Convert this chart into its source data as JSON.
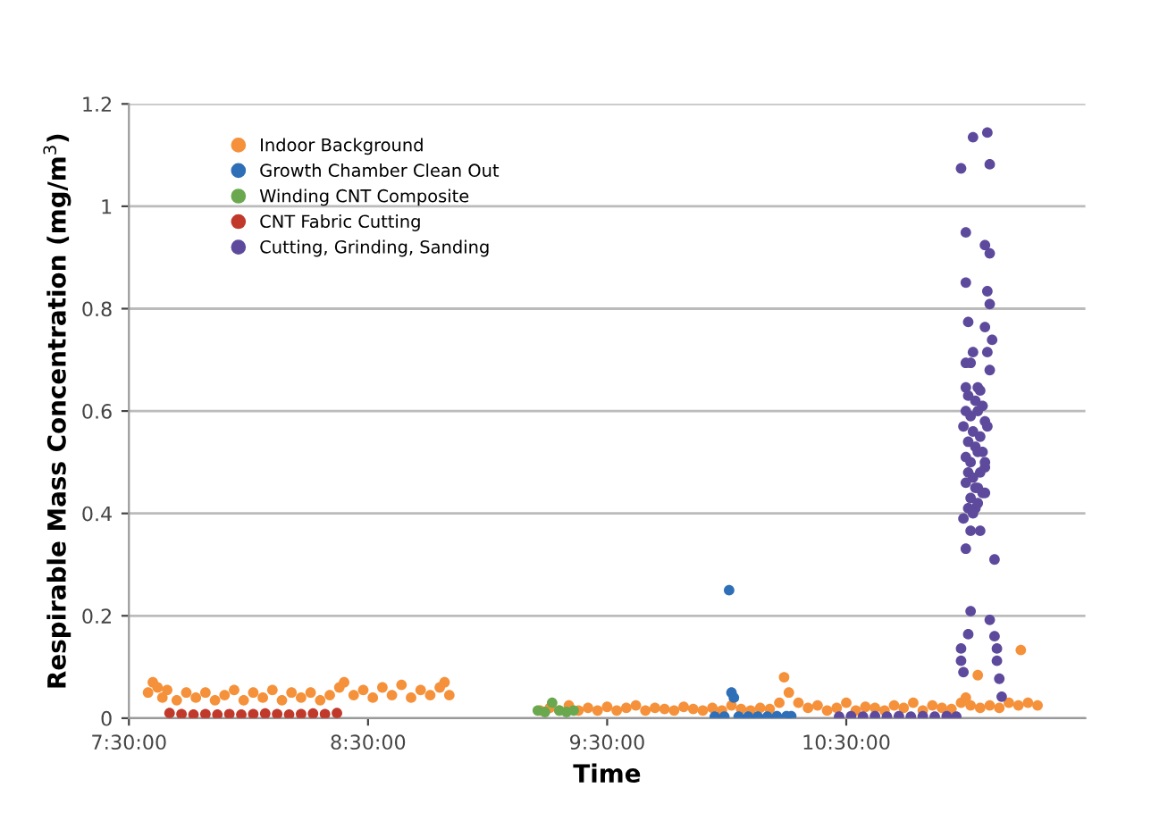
{
  "chart_data": {
    "type": "scatter",
    "xlabel": "Time",
    "ylabel": "Respirable Mass Concentration (mg/m$^{3}$)",
    "xlim": [
      7.5,
      11.5
    ],
    "xticks": [
      {
        "value": 7.5,
        "label": "7:30:00"
      },
      {
        "value": 8.5,
        "label": "8:30:00"
      },
      {
        "value": 9.5,
        "label": "9:30:00"
      },
      {
        "value": 10.5,
        "label": "10:30:00"
      }
    ],
    "ylim": [
      0,
      1.2
    ],
    "yticks": [
      0,
      0.2,
      0.4,
      0.6,
      0.8,
      1,
      1.2
    ],
    "grid": "y",
    "legend": "top left",
    "marker": "circle",
    "series": [
      {
        "name": "Indoor Background",
        "color": "#f5913a",
        "x": [
          7.58,
          7.6,
          7.62,
          7.64,
          7.66,
          7.7,
          7.74,
          7.78,
          7.82,
          7.86,
          7.9,
          7.94,
          7.98,
          8.02,
          8.06,
          8.1,
          8.14,
          8.18,
          8.22,
          8.26,
          8.3,
          8.34,
          8.38,
          8.4,
          8.44,
          8.48,
          8.52,
          8.56,
          8.6,
          8.64,
          8.68,
          8.72,
          8.76,
          8.8,
          8.82,
          8.84,
          9.22,
          9.26,
          9.3,
          9.34,
          9.38,
          9.42,
          9.46,
          9.5,
          9.54,
          9.58,
          9.62,
          9.66,
          9.7,
          9.74,
          9.78,
          9.82,
          9.86,
          9.9,
          9.94,
          9.98,
          10.02,
          10.06,
          10.1,
          10.14,
          10.18,
          10.22,
          10.24,
          10.26,
          10.3,
          10.34,
          10.38,
          10.42,
          10.46,
          10.5,
          10.54,
          10.58,
          10.62,
          10.66,
          10.7,
          10.74,
          10.78,
          10.82,
          10.86,
          10.9,
          10.94,
          10.98,
          11.0,
          11.02,
          11.05,
          11.06,
          11.1,
          11.14,
          11.18,
          11.22,
          11.23,
          11.26,
          11.3
        ],
        "values": [
          0.05,
          0.07,
          0.06,
          0.04,
          0.055,
          0.035,
          0.05,
          0.04,
          0.05,
          0.035,
          0.045,
          0.055,
          0.035,
          0.05,
          0.04,
          0.055,
          0.035,
          0.05,
          0.04,
          0.05,
          0.035,
          0.045,
          0.06,
          0.07,
          0.045,
          0.055,
          0.04,
          0.06,
          0.045,
          0.065,
          0.04,
          0.055,
          0.045,
          0.06,
          0.07,
          0.045,
          0.015,
          0.02,
          0.015,
          0.025,
          0.015,
          0.02,
          0.015,
          0.022,
          0.015,
          0.02,
          0.025,
          0.015,
          0.02,
          0.018,
          0.015,
          0.022,
          0.018,
          0.015,
          0.02,
          0.015,
          0.025,
          0.018,
          0.015,
          0.02,
          0.018,
          0.03,
          0.08,
          0.05,
          0.03,
          0.02,
          0.025,
          0.015,
          0.02,
          0.03,
          0.015,
          0.022,
          0.02,
          0.015,
          0.025,
          0.02,
          0.03,
          0.015,
          0.025,
          0.02,
          0.018,
          0.03,
          0.04,
          0.025,
          0.084,
          0.02,
          0.025,
          0.02,
          0.03,
          0.025,
          0.133,
          0.03,
          0.025
        ]
      },
      {
        "name": "Growth Chamber Clean Out",
        "color": "#2e6fb7",
        "x": [
          9.95,
          9.99,
          10.01,
          10.02,
          10.03,
          10.05,
          10.09,
          10.13,
          10.17,
          10.21,
          10.25,
          10.27
        ],
        "values": [
          0.003,
          0.003,
          0.25,
          0.05,
          0.04,
          0.003,
          0.003,
          0.003,
          0.003,
          0.004,
          0.004,
          0.004
        ]
      },
      {
        "name": "Winding CNT Composite",
        "color": "#6aa84f",
        "x": [
          9.21,
          9.24,
          9.27,
          9.3,
          9.33,
          9.36
        ],
        "values": [
          0.015,
          0.012,
          0.03,
          0.015,
          0.012,
          0.015
        ]
      },
      {
        "name": "CNT Fabric Cutting",
        "color": "#c0392b",
        "x": [
          7.67,
          7.72,
          7.77,
          7.82,
          7.87,
          7.92,
          7.97,
          8.02,
          8.07,
          8.12,
          8.17,
          8.22,
          8.27,
          8.32,
          8.37
        ],
        "values": [
          0.01,
          0.008,
          0.007,
          0.008,
          0.007,
          0.008,
          0.007,
          0.008,
          0.009,
          0.008,
          0.007,
          0.008,
          0.009,
          0.008,
          0.01
        ]
      },
      {
        "name": "Cutting, Grinding, Sanding",
        "color": "#5e4a9c",
        "x": [
          10.47,
          10.52,
          10.57,
          10.62,
          10.67,
          10.72,
          10.77,
          10.82,
          10.87,
          10.92,
          10.96,
          11.03,
          11.09,
          10.98,
          11.1,
          11.0,
          11.08,
          11.1,
          11.0,
          11.09,
          11.1,
          11.01,
          11.08,
          11.11,
          11.03,
          11.09,
          11.0,
          11.02,
          11.1,
          11.0,
          11.05,
          11.06,
          11.01,
          11.04,
          11.07,
          11.0,
          11.02,
          11.05,
          11.08,
          10.99,
          11.03,
          11.06,
          11.09,
          11.01,
          11.04,
          11.07,
          11.0,
          11.02,
          11.05,
          11.08,
          11.01,
          11.03,
          11.06,
          11.0,
          11.04,
          11.07,
          11.02,
          11.05,
          11.08,
          11.01,
          11.04,
          10.99,
          11.02,
          11.06,
          11.0,
          11.03,
          11.12,
          11.02,
          11.05,
          11.08,
          11.1,
          11.01,
          11.12,
          10.98,
          11.13,
          10.98,
          11.13,
          10.99,
          11.14,
          11.15
        ],
        "values": [
          0.003,
          0.004,
          0.003,
          0.004,
          0.003,
          0.004,
          0.003,
          0.004,
          0.003,
          0.004,
          0.003,
          1.135,
          1.144,
          1.074,
          1.082,
          0.949,
          0.924,
          0.908,
          0.851,
          0.834,
          0.809,
          0.774,
          0.764,
          0.739,
          0.715,
          0.715,
          0.694,
          0.694,
          0.68,
          0.646,
          0.646,
          0.64,
          0.63,
          0.62,
          0.61,
          0.6,
          0.59,
          0.6,
          0.58,
          0.57,
          0.56,
          0.55,
          0.57,
          0.54,
          0.53,
          0.52,
          0.51,
          0.5,
          0.52,
          0.49,
          0.48,
          0.47,
          0.48,
          0.46,
          0.45,
          0.44,
          0.43,
          0.42,
          0.44,
          0.41,
          0.41,
          0.39,
          0.366,
          0.366,
          0.331,
          0.4,
          0.31,
          0.209,
          0.45,
          0.5,
          0.192,
          0.164,
          0.16,
          0.136,
          0.136,
          0.112,
          0.112,
          0.09,
          0.077,
          0.042
        ]
      }
    ]
  }
}
